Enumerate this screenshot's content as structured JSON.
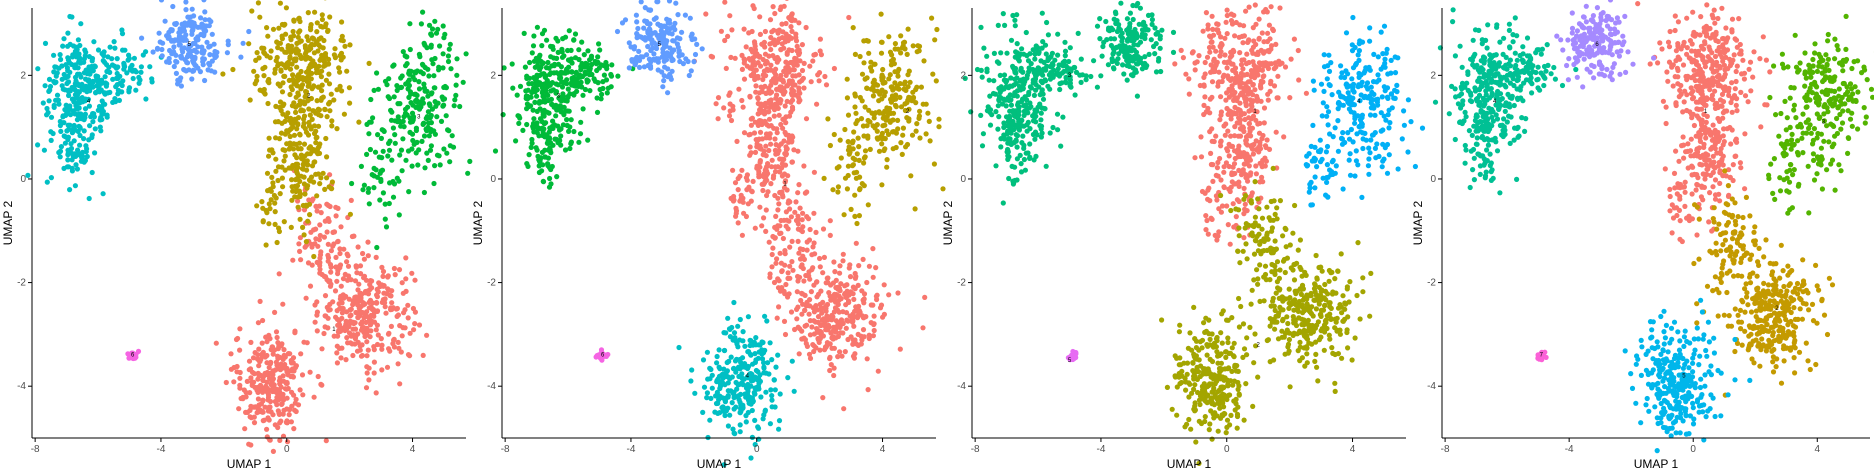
{
  "chart_data": [
    {
      "type": "scatter",
      "xlabel": "UMAP 1",
      "ylabel": "UMAP 2",
      "xticks": [
        -8,
        -4,
        0,
        4
      ],
      "yticks": [
        -4,
        -2,
        0,
        2
      ],
      "xlim": [
        -8.1,
        5.7
      ],
      "ylim": [
        -5.0,
        3.3
      ],
      "clusters": [
        {
          "label": "1",
          "color": "#F8766D",
          "center": [
            1.5,
            -2.9
          ]
        },
        {
          "label": "2",
          "color": "#B79F00",
          "center": [
            0.7,
            1.6
          ]
        },
        {
          "label": "3",
          "color": "#00BA38",
          "center": [
            4.2,
            1.2
          ]
        },
        {
          "label": "4",
          "color": "#00BFC4",
          "center": [
            -6.3,
            1.5
          ]
        },
        {
          "label": "5",
          "color": "#619CFF",
          "center": [
            -3.1,
            2.6
          ]
        },
        {
          "label": "6",
          "color": "#F564E3",
          "center": [
            -4.9,
            -3.4
          ]
        }
      ]
    },
    {
      "type": "scatter",
      "xlabel": "UMAP 1",
      "ylabel": "UMAP 2",
      "xticks": [
        -8,
        -4,
        0,
        4
      ],
      "yticks": [
        -4,
        -2,
        0,
        2
      ],
      "xlim": [
        -8.1,
        5.7
      ],
      "ylim": [
        -5.0,
        3.3
      ],
      "clusters": [
        {
          "label": "1",
          "color": "#F8766D",
          "center": [
            0.9,
            -0.1
          ]
        },
        {
          "label": "2",
          "color": "#B79F00",
          "center": [
            4.8,
            1.3
          ]
        },
        {
          "label": "3",
          "color": "#00BA38",
          "center": [
            -6.3,
            1.6
          ]
        },
        {
          "label": "4",
          "color": "#00BFC4",
          "center": [
            -0.3,
            -3.8
          ]
        },
        {
          "label": "5",
          "color": "#619CFF",
          "center": [
            -3.1,
            2.6
          ]
        },
        {
          "label": "6",
          "color": "#F564E3",
          "center": [
            -4.9,
            -3.4
          ]
        }
      ]
    },
    {
      "type": "scatter",
      "xlabel": "UMAP 1",
      "ylabel": "UMAP 2",
      "xticks": [
        -8,
        -4,
        0,
        4
      ],
      "yticks": [
        -4,
        -2,
        0,
        2
      ],
      "xlim": [
        -8.1,
        5.7
      ],
      "ylim": [
        -5.0,
        3.3
      ],
      "clusters": [
        {
          "label": "1",
          "color": "#F8766D",
          "center": [
            0.9,
            1.3
          ]
        },
        {
          "label": "2",
          "color": "#A3A500",
          "center": [
            1.0,
            -3.2
          ]
        },
        {
          "label": "3",
          "color": "#00BF7D",
          "center": [
            -5.0,
            2.0
          ]
        },
        {
          "label": "4",
          "color": "#00B0F6",
          "center": [
            4.2,
            1.5
          ]
        },
        {
          "label": "5",
          "color": "#E76BF3",
          "center": [
            -5.0,
            -3.5
          ]
        }
      ]
    },
    {
      "type": "scatter",
      "xlabel": "UMAP 1",
      "ylabel": "UMAP 2",
      "xticks": [
        -8,
        -4,
        0,
        4
      ],
      "yticks": [
        -4,
        -2,
        0,
        2
      ],
      "xlim": [
        -8.1,
        5.7
      ],
      "ylim": [
        -5.0,
        3.3
      ],
      "clusters": [
        {
          "label": "1",
          "color": "#F8766D",
          "center": [
            0.4,
            1.3
          ]
        },
        {
          "label": "2",
          "color": "#C49A00",
          "center": [
            2.7,
            -2.5
          ]
        },
        {
          "label": "3",
          "color": "#53B400",
          "center": [
            4.2,
            1.1
          ]
        },
        {
          "label": "4",
          "color": "#00C094",
          "center": [
            -6.4,
            1.5
          ]
        },
        {
          "label": "5",
          "color": "#00B6EB",
          "center": [
            -0.3,
            -3.8
          ]
        },
        {
          "label": "6",
          "color": "#A58AFF",
          "center": [
            -3.1,
            2.6
          ]
        },
        {
          "label": "7",
          "color": "#FB61D7",
          "center": [
            -4.9,
            -3.4
          ]
        }
      ]
    }
  ]
}
